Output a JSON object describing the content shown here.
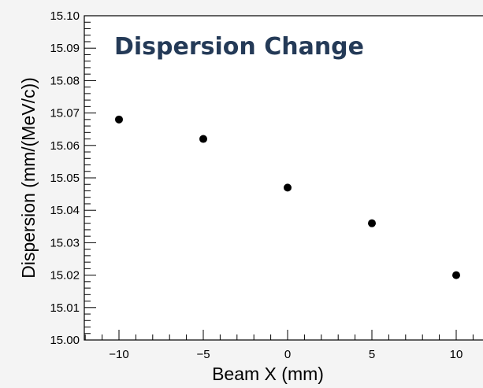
{
  "chart_data": {
    "type": "scatter",
    "title": "Dispersion Change",
    "xlabel": "Beam X (mm)",
    "ylabel": "Dispersion (mm/(MeV/c))",
    "xlim": [
      -12,
      12
    ],
    "ylim": [
      15.0,
      15.1
    ],
    "x_ticks": [
      -10,
      -5,
      0,
      5,
      10
    ],
    "x_tick_labels": [
      "−10",
      "−5",
      "0",
      "5",
      "10"
    ],
    "y_ticks": [
      15.0,
      15.01,
      15.02,
      15.03,
      15.04,
      15.05,
      15.06,
      15.07,
      15.08,
      15.09,
      15.1
    ],
    "y_tick_labels": [
      "15.00",
      "15.01",
      "15.02",
      "15.03",
      "15.04",
      "15.05",
      "15.06",
      "15.07",
      "15.08",
      "15.09",
      "15.10"
    ],
    "series": [
      {
        "x": [
          -10,
          -5,
          0,
          5,
          10
        ],
        "y": [
          15.068,
          15.062,
          15.047,
          15.036,
          15.02
        ]
      }
    ],
    "grid": false,
    "marker_color": "#000000",
    "title_color": "#243a57"
  }
}
